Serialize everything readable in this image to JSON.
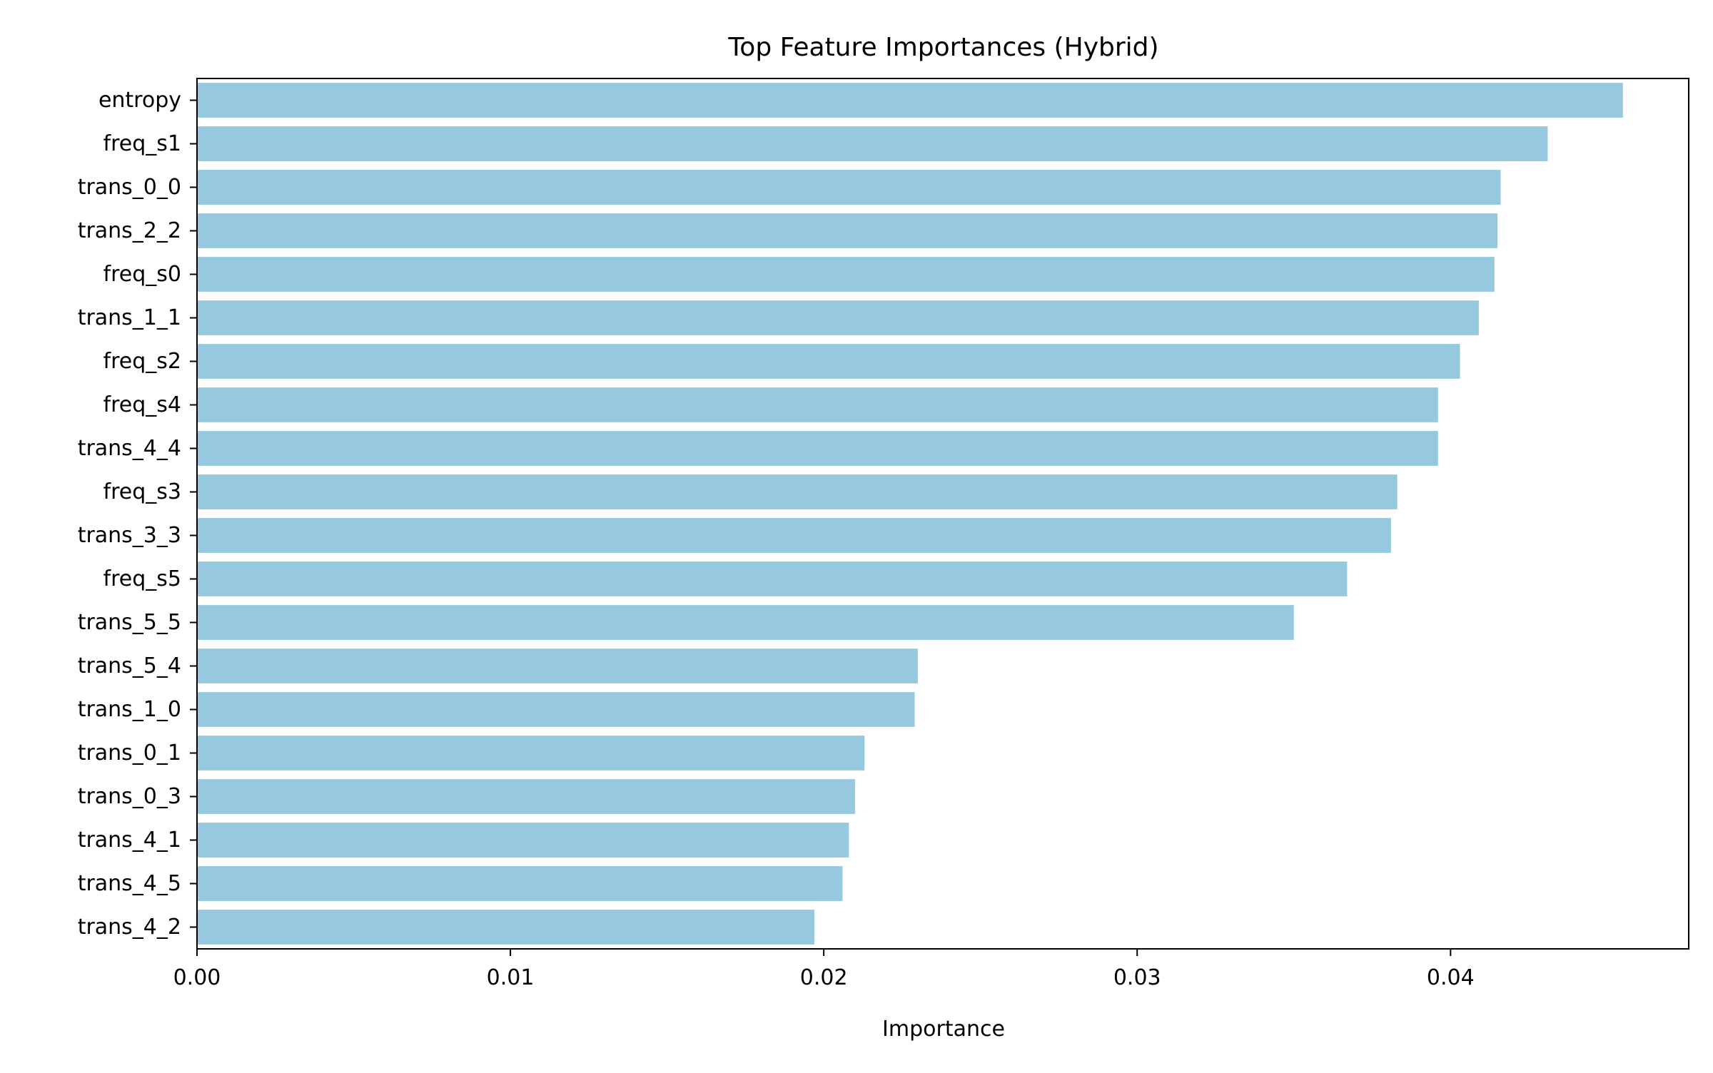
{
  "chart_data": {
    "type": "bar",
    "orientation": "horizontal",
    "title": "Top Feature Importances (Hybrid)",
    "xlabel": "Importance",
    "ylabel": "",
    "xlim": [
      0,
      0.0476
    ],
    "xticks": [
      0.0,
      0.01,
      0.02,
      0.03,
      0.04
    ],
    "xtick_labels": [
      "0.00",
      "0.01",
      "0.02",
      "0.03",
      "0.04"
    ],
    "grid": false,
    "legend": "none",
    "bar_color": "#96c9df",
    "categories": [
      "entropy",
      "freq_s1",
      "trans_0_0",
      "trans_2_2",
      "freq_s0",
      "trans_1_1",
      "freq_s2",
      "freq_s4",
      "trans_4_4",
      "freq_s3",
      "trans_3_3",
      "freq_s5",
      "trans_5_5",
      "trans_5_4",
      "trans_1_0",
      "trans_0_1",
      "trans_0_3",
      "trans_4_1",
      "trans_4_5",
      "trans_4_2"
    ],
    "values": [
      0.0455,
      0.0431,
      0.0416,
      0.0415,
      0.0414,
      0.0409,
      0.0403,
      0.0396,
      0.0396,
      0.0383,
      0.0381,
      0.0367,
      0.035,
      0.023,
      0.0229,
      0.0213,
      0.021,
      0.0208,
      0.0206,
      0.0197
    ]
  }
}
